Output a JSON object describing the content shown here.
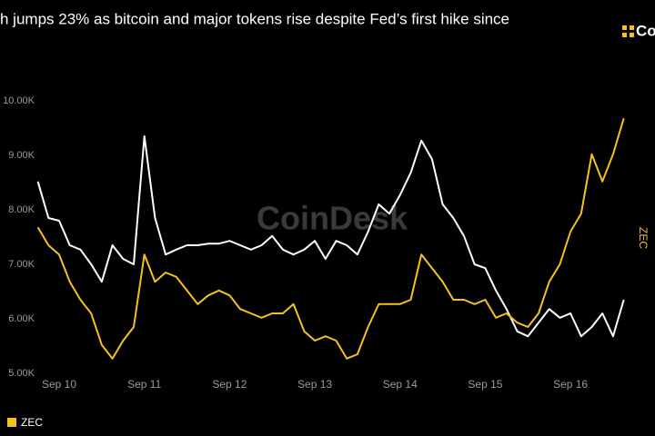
{
  "chart_data": {
    "type": "line",
    "title": "h jumps 23% as bitcoin and major tokens rise despite Fed’s first hike since",
    "logo": "Co",
    "watermark": "CoinDesk",
    "y2label": "ZEC",
    "categories": [
      null,
      null,
      "Sep 10",
      null,
      null,
      null,
      null,
      null,
      null,
      null,
      "Sep 11",
      null,
      null,
      null,
      null,
      null,
      null,
      null,
      "Sep 12",
      null,
      null,
      null,
      null,
      null,
      null,
      null,
      "Sep 13",
      null,
      null,
      null,
      null,
      null,
      null,
      null,
      "Sep 14",
      null,
      null,
      null,
      null,
      null,
      null,
      null,
      "Sep 15",
      null,
      null,
      null,
      null,
      null,
      null,
      null,
      "Sep 16",
      null,
      null,
      null,
      null,
      null
    ],
    "series": [
      {
        "color": "#ffffff",
        "values": [
          8.52,
          7.85,
          7.8,
          7.35,
          7.27,
          7.0,
          6.68,
          7.35,
          7.1,
          7.0,
          9.35,
          7.85,
          7.18,
          7.27,
          7.35,
          7.35,
          7.38,
          7.38,
          7.43,
          7.35,
          7.27,
          7.35,
          7.52,
          7.27,
          7.18,
          7.27,
          7.43,
          7.1,
          7.43,
          7.35,
          7.18,
          7.6,
          8.1,
          7.93,
          8.27,
          8.68,
          9.27,
          8.93,
          8.1,
          7.85,
          7.52,
          7.0,
          6.93,
          6.52,
          6.18,
          5.77,
          5.68,
          5.93,
          6.18,
          6.02,
          6.1,
          5.68,
          5.85,
          6.1,
          5.68,
          6.35
        ]
      },
      {
        "name": "ZEC",
        "color": "#f5c21b",
        "values": [
          7.68,
          7.35,
          7.18,
          6.68,
          6.35,
          6.1,
          5.52,
          5.27,
          5.6,
          5.85,
          7.18,
          6.68,
          6.85,
          6.77,
          6.52,
          6.27,
          6.43,
          6.52,
          6.43,
          6.18,
          6.1,
          6.02,
          6.1,
          6.1,
          6.27,
          5.77,
          5.6,
          5.68,
          5.6,
          5.27,
          5.35,
          5.85,
          6.27,
          6.27,
          6.27,
          6.35,
          7.18,
          6.93,
          6.68,
          6.35,
          6.35,
          6.27,
          6.35,
          6.02,
          6.1,
          5.93,
          5.85,
          6.1,
          6.68,
          7.0,
          7.6,
          7.93,
          9.02,
          8.52,
          9.02,
          9.68
        ]
      }
    ],
    "ylim": [
      4.85,
      10.4
    ],
    "yticks": [
      {
        "value": 5,
        "label": "5.00K"
      },
      {
        "value": 6,
        "label": "6.00K"
      },
      {
        "value": 7,
        "label": "7.00K"
      },
      {
        "value": 8,
        "label": "8.00K"
      },
      {
        "value": 9,
        "label": "9.00K"
      },
      {
        "value": 10,
        "label": "10.00K"
      }
    ]
  }
}
